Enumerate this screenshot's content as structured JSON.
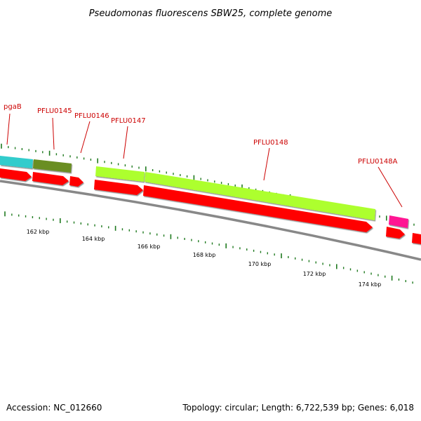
{
  "title": "Pseudomonas fluorescens SBW25, complete genome",
  "footer": {
    "accession": "Accession: NC_012660",
    "summary": "Topology: circular; Length: 6,722,539 bp; Genes: 6,018"
  },
  "colors": {
    "label": "#cc0000",
    "leader": "#cc0000",
    "backbone": "#888888",
    "tick": "#1f7a1f",
    "text": "#000000",
    "cds_strand": "#ff0000"
  },
  "gene_labels": [
    "pgaB",
    "PFLU0145",
    "PFLU0146",
    "PFLU0147",
    "PFLU0148",
    "PFLU0148A"
  ],
  "feature_colors": {
    "pgaB": "#33cccc",
    "PFLU0145": "#6b8e23",
    "PFLU0147": "#adff2f",
    "PFLU0148": "#adff2f",
    "PFLU0148A": "#ff1493"
  },
  "scale": {
    "unit": "kbp",
    "labels": [
      "162 kbp",
      "164 kbp",
      "166 kbp",
      "168 kbp",
      "170 kbp",
      "172 kbp",
      "174 kbp"
    ]
  }
}
